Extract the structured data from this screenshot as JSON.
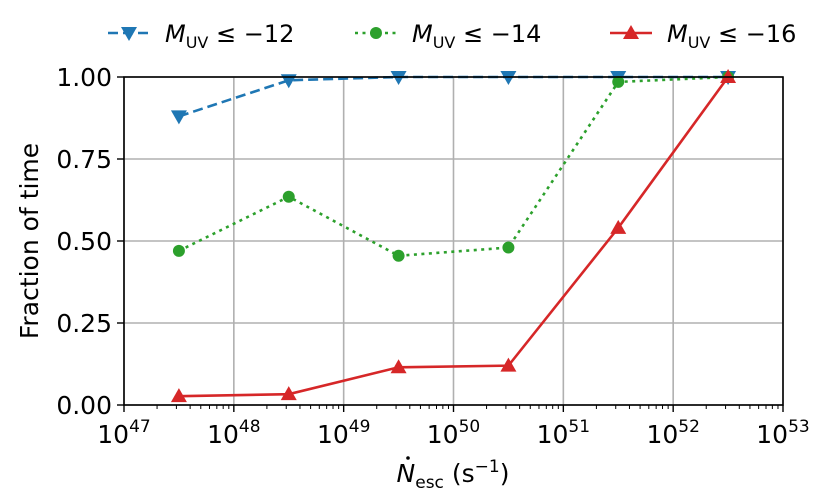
{
  "chart_data": {
    "type": "line",
    "title": "",
    "xlabel": "Ṅ_esc (s⁻¹)",
    "xlabel_parts": {
      "main": "N",
      "sub": "esc",
      "unit_open": " (s",
      "unit_sup": "−1",
      "unit_close": ")"
    },
    "ylabel": "Fraction of time",
    "xscale": "log",
    "xlim": [
      1e+47,
      1e+53
    ],
    "ylim": [
      0.0,
      1.0
    ],
    "grid": true,
    "legend_position": "top, above plot, 3 columns",
    "x_tick_labels": [
      {
        "base": "10",
        "exp": "47"
      },
      {
        "base": "10",
        "exp": "48"
      },
      {
        "base": "10",
        "exp": "49"
      },
      {
        "base": "10",
        "exp": "50"
      },
      {
        "base": "10",
        "exp": "51"
      },
      {
        "base": "10",
        "exp": "52"
      },
      {
        "base": "10",
        "exp": "53"
      }
    ],
    "y_tick_labels": [
      "0.00",
      "0.25",
      "0.50",
      "0.75",
      "1.00"
    ],
    "y_ticks": [
      0.0,
      0.25,
      0.5,
      0.75,
      1.0
    ],
    "x": [
      3.16e+47,
      3.16e+48,
      3.16e+49,
      3.16e+50,
      3.16e+51,
      3.16e+52
    ],
    "x_log10": [
      47.5,
      48.5,
      49.5,
      50.5,
      51.5,
      52.5
    ],
    "series": [
      {
        "name": "M_UV ≤ −12",
        "legend_label": {
          "main": "M",
          "sub": "UV",
          "rest": " ≤ −12"
        },
        "color": "#1f77b4",
        "linestyle": "dashed",
        "marker": "triangle-down",
        "values": [
          0.88,
          0.99,
          1.0,
          1.0,
          1.0,
          1.0
        ]
      },
      {
        "name": "M_UV ≤ −14",
        "legend_label": {
          "main": "M",
          "sub": "UV",
          "rest": " ≤ −14"
        },
        "color": "#2ca02c",
        "linestyle": "dotted",
        "marker": "circle",
        "values": [
          0.47,
          0.635,
          0.455,
          0.48,
          0.985,
          1.0
        ]
      },
      {
        "name": "M_UV ≤ −16",
        "legend_label": {
          "main": "M",
          "sub": "UV",
          "rest": " ≤ −16"
        },
        "color": "#d62728",
        "linestyle": "solid",
        "marker": "triangle-up",
        "values": [
          0.027,
          0.033,
          0.115,
          0.12,
          0.54,
          1.0
        ]
      }
    ]
  }
}
